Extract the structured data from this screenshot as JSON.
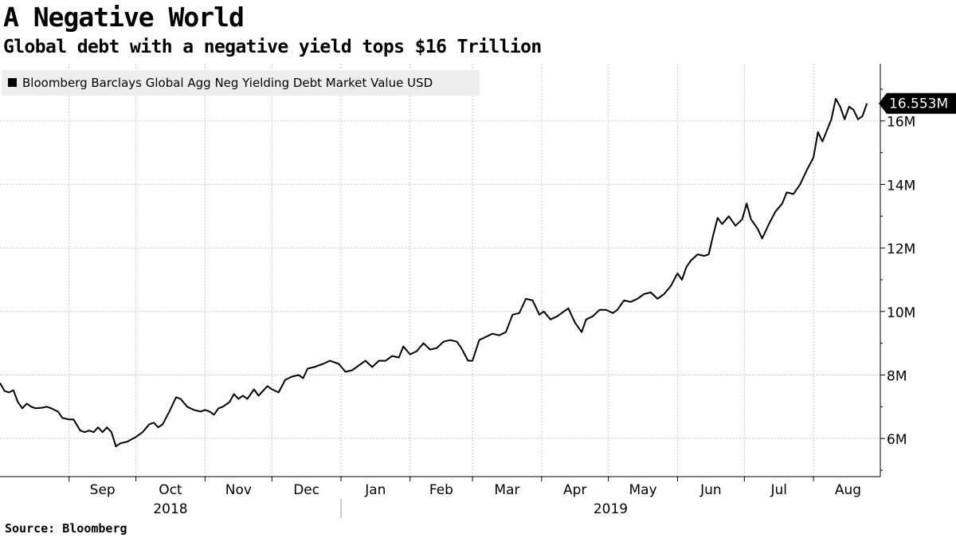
{
  "title": "A Negative World",
  "subtitle": "Global debt with a negative yield tops $16 Trillion",
  "source": "Source: Bloomberg",
  "colors": {
    "line": "#000000",
    "grid": "#c8c8c8",
    "legend_bg": "#eeeeee",
    "axis": "#000000"
  },
  "chart_data": {
    "type": "line",
    "title": "A Negative World",
    "subtitle": "Global debt with a negative yield tops $16 Trillion",
    "xlabel": "",
    "ylabel": "",
    "x_range": [
      "2018-08-01",
      "2019-08-31"
    ],
    "ylim": [
      4.8,
      17.8
    ],
    "yticks": [
      6,
      8,
      10,
      12,
      14,
      16
    ],
    "ytick_labels": [
      "6M",
      "8M",
      "10M",
      "12M",
      "14M",
      "16M"
    ],
    "month_labels": [
      {
        "date": "2018-09-01",
        "label": "Sep"
      },
      {
        "date": "2018-10-01",
        "label": "Oct"
      },
      {
        "date": "2018-11-01",
        "label": "Nov"
      },
      {
        "date": "2018-12-01",
        "label": "Dec"
      },
      {
        "date": "2019-01-01",
        "label": "Jan"
      },
      {
        "date": "2019-02-01",
        "label": "Feb"
      },
      {
        "date": "2019-03-01",
        "label": "Mar"
      },
      {
        "date": "2019-04-01",
        "label": "Apr"
      },
      {
        "date": "2019-05-01",
        "label": "May"
      },
      {
        "date": "2019-06-01",
        "label": "Jun"
      },
      {
        "date": "2019-07-01",
        "label": "Jul"
      },
      {
        "date": "2019-08-01",
        "label": "Aug"
      }
    ],
    "year_labels": [
      "2018",
      "2019"
    ],
    "grid": true,
    "legend_position": "top-left",
    "last_value_label": "16.553M",
    "series": [
      {
        "name": "Bloomberg Barclays Global Agg Neg Yielding Debt Market Value USD",
        "points": [
          [
            "2018-08-01",
            7.75
          ],
          [
            "2018-08-03",
            7.5
          ],
          [
            "2018-08-05",
            7.45
          ],
          [
            "2018-08-07",
            7.52
          ],
          [
            "2018-08-09",
            7.15
          ],
          [
            "2018-08-11",
            6.95
          ],
          [
            "2018-08-13",
            7.1
          ],
          [
            "2018-08-15",
            7.0
          ],
          [
            "2018-08-17",
            6.95
          ],
          [
            "2018-08-20",
            6.97
          ],
          [
            "2018-08-22",
            7.0
          ],
          [
            "2018-08-24",
            6.95
          ],
          [
            "2018-08-27",
            6.85
          ],
          [
            "2018-08-29",
            6.65
          ],
          [
            "2018-09-01",
            6.6
          ],
          [
            "2018-09-03",
            6.6
          ],
          [
            "2018-09-06",
            6.25
          ],
          [
            "2018-09-08",
            6.2
          ],
          [
            "2018-09-10",
            6.25
          ],
          [
            "2018-09-12",
            6.2
          ],
          [
            "2018-09-14",
            6.35
          ],
          [
            "2018-09-16",
            6.2
          ],
          [
            "2018-09-18",
            6.35
          ],
          [
            "2018-09-20",
            6.2
          ],
          [
            "2018-09-22",
            5.75
          ],
          [
            "2018-09-24",
            5.85
          ],
          [
            "2018-09-27",
            5.9
          ],
          [
            "2018-10-01",
            6.05
          ],
          [
            "2018-10-04",
            6.2
          ],
          [
            "2018-10-07",
            6.45
          ],
          [
            "2018-10-09",
            6.5
          ],
          [
            "2018-10-11",
            6.35
          ],
          [
            "2018-10-13",
            6.45
          ],
          [
            "2018-10-16",
            6.85
          ],
          [
            "2018-10-19",
            7.3
          ],
          [
            "2018-10-21",
            7.25
          ],
          [
            "2018-10-24",
            7.0
          ],
          [
            "2018-10-27",
            6.9
          ],
          [
            "2018-10-30",
            6.85
          ],
          [
            "2018-11-01",
            6.9
          ],
          [
            "2018-11-03",
            6.85
          ],
          [
            "2018-11-05",
            6.75
          ],
          [
            "2018-11-07",
            6.95
          ],
          [
            "2018-11-09",
            7.0
          ],
          [
            "2018-11-12",
            7.15
          ],
          [
            "2018-11-14",
            7.4
          ],
          [
            "2018-11-16",
            7.25
          ],
          [
            "2018-11-18",
            7.35
          ],
          [
            "2018-11-20",
            7.25
          ],
          [
            "2018-11-23",
            7.55
          ],
          [
            "2018-11-25",
            7.35
          ],
          [
            "2018-11-27",
            7.5
          ],
          [
            "2018-11-29",
            7.65
          ],
          [
            "2018-12-01",
            7.55
          ],
          [
            "2018-12-04",
            7.45
          ],
          [
            "2018-12-07",
            7.85
          ],
          [
            "2018-12-10",
            7.95
          ],
          [
            "2018-12-13",
            8.0
          ],
          [
            "2018-12-15",
            7.9
          ],
          [
            "2018-12-17",
            8.2
          ],
          [
            "2018-12-20",
            8.25
          ],
          [
            "2018-12-24",
            8.35
          ],
          [
            "2018-12-27",
            8.45
          ],
          [
            "2018-12-31",
            8.35
          ],
          [
            "2019-01-03",
            8.1
          ],
          [
            "2019-01-06",
            8.15
          ],
          [
            "2019-01-09",
            8.3
          ],
          [
            "2019-01-12",
            8.45
          ],
          [
            "2019-01-15",
            8.25
          ],
          [
            "2019-01-18",
            8.45
          ],
          [
            "2019-01-21",
            8.45
          ],
          [
            "2019-01-24",
            8.6
          ],
          [
            "2019-01-27",
            8.55
          ],
          [
            "2019-01-29",
            8.9
          ],
          [
            "2019-02-01",
            8.65
          ],
          [
            "2019-02-04",
            8.75
          ],
          [
            "2019-02-07",
            9.0
          ],
          [
            "2019-02-10",
            8.8
          ],
          [
            "2019-02-13",
            8.85
          ],
          [
            "2019-02-16",
            9.05
          ],
          [
            "2019-02-19",
            9.1
          ],
          [
            "2019-02-22",
            9.05
          ],
          [
            "2019-02-24",
            8.85
          ],
          [
            "2019-02-27",
            8.45
          ],
          [
            "2019-03-01",
            8.45
          ],
          [
            "2019-03-04",
            9.1
          ],
          [
            "2019-03-07",
            9.2
          ],
          [
            "2019-03-10",
            9.3
          ],
          [
            "2019-03-13",
            9.25
          ],
          [
            "2019-03-16",
            9.35
          ],
          [
            "2019-03-19",
            9.9
          ],
          [
            "2019-03-22",
            9.95
          ],
          [
            "2019-03-25",
            10.4
          ],
          [
            "2019-03-28",
            10.35
          ],
          [
            "2019-03-31",
            9.9
          ],
          [
            "2019-04-02",
            10.0
          ],
          [
            "2019-04-05",
            9.75
          ],
          [
            "2019-04-08",
            9.85
          ],
          [
            "2019-04-11",
            10.0
          ],
          [
            "2019-04-13",
            10.1
          ],
          [
            "2019-04-16",
            9.65
          ],
          [
            "2019-04-19",
            9.35
          ],
          [
            "2019-04-21",
            9.75
          ],
          [
            "2019-04-24",
            9.85
          ],
          [
            "2019-04-27",
            10.05
          ],
          [
            "2019-04-30",
            10.05
          ],
          [
            "2019-05-03",
            9.95
          ],
          [
            "2019-05-05",
            10.05
          ],
          [
            "2019-05-08",
            10.35
          ],
          [
            "2019-05-11",
            10.3
          ],
          [
            "2019-05-14",
            10.4
          ],
          [
            "2019-05-17",
            10.55
          ],
          [
            "2019-05-20",
            10.6
          ],
          [
            "2019-05-23",
            10.4
          ],
          [
            "2019-05-26",
            10.55
          ],
          [
            "2019-05-29",
            10.8
          ],
          [
            "2019-06-01",
            11.2
          ],
          [
            "2019-06-03",
            11.0
          ],
          [
            "2019-06-05",
            11.4
          ],
          [
            "2019-06-07",
            11.6
          ],
          [
            "2019-06-10",
            11.8
          ],
          [
            "2019-06-13",
            11.75
          ],
          [
            "2019-06-15",
            11.8
          ],
          [
            "2019-06-17",
            12.4
          ],
          [
            "2019-06-19",
            12.95
          ],
          [
            "2019-06-21",
            12.75
          ],
          [
            "2019-06-24",
            13.0
          ],
          [
            "2019-06-27",
            12.7
          ],
          [
            "2019-06-30",
            12.9
          ],
          [
            "2019-07-02",
            13.4
          ],
          [
            "2019-07-04",
            12.9
          ],
          [
            "2019-07-07",
            12.6
          ],
          [
            "2019-07-09",
            12.3
          ],
          [
            "2019-07-12",
            12.75
          ],
          [
            "2019-07-15",
            13.15
          ],
          [
            "2019-07-18",
            13.4
          ],
          [
            "2019-07-20",
            13.75
          ],
          [
            "2019-07-23",
            13.7
          ],
          [
            "2019-07-26",
            14.0
          ],
          [
            "2019-07-29",
            14.45
          ],
          [
            "2019-08-01",
            14.85
          ],
          [
            "2019-08-03",
            15.65
          ],
          [
            "2019-08-05",
            15.35
          ],
          [
            "2019-08-07",
            15.7
          ],
          [
            "2019-08-09",
            16.05
          ],
          [
            "2019-08-11",
            16.7
          ],
          [
            "2019-08-13",
            16.45
          ],
          [
            "2019-08-15",
            16.05
          ],
          [
            "2019-08-17",
            16.45
          ],
          [
            "2019-08-19",
            16.35
          ],
          [
            "2019-08-21",
            16.05
          ],
          [
            "2019-08-23",
            16.15
          ],
          [
            "2019-08-25",
            16.553
          ]
        ]
      }
    ]
  }
}
